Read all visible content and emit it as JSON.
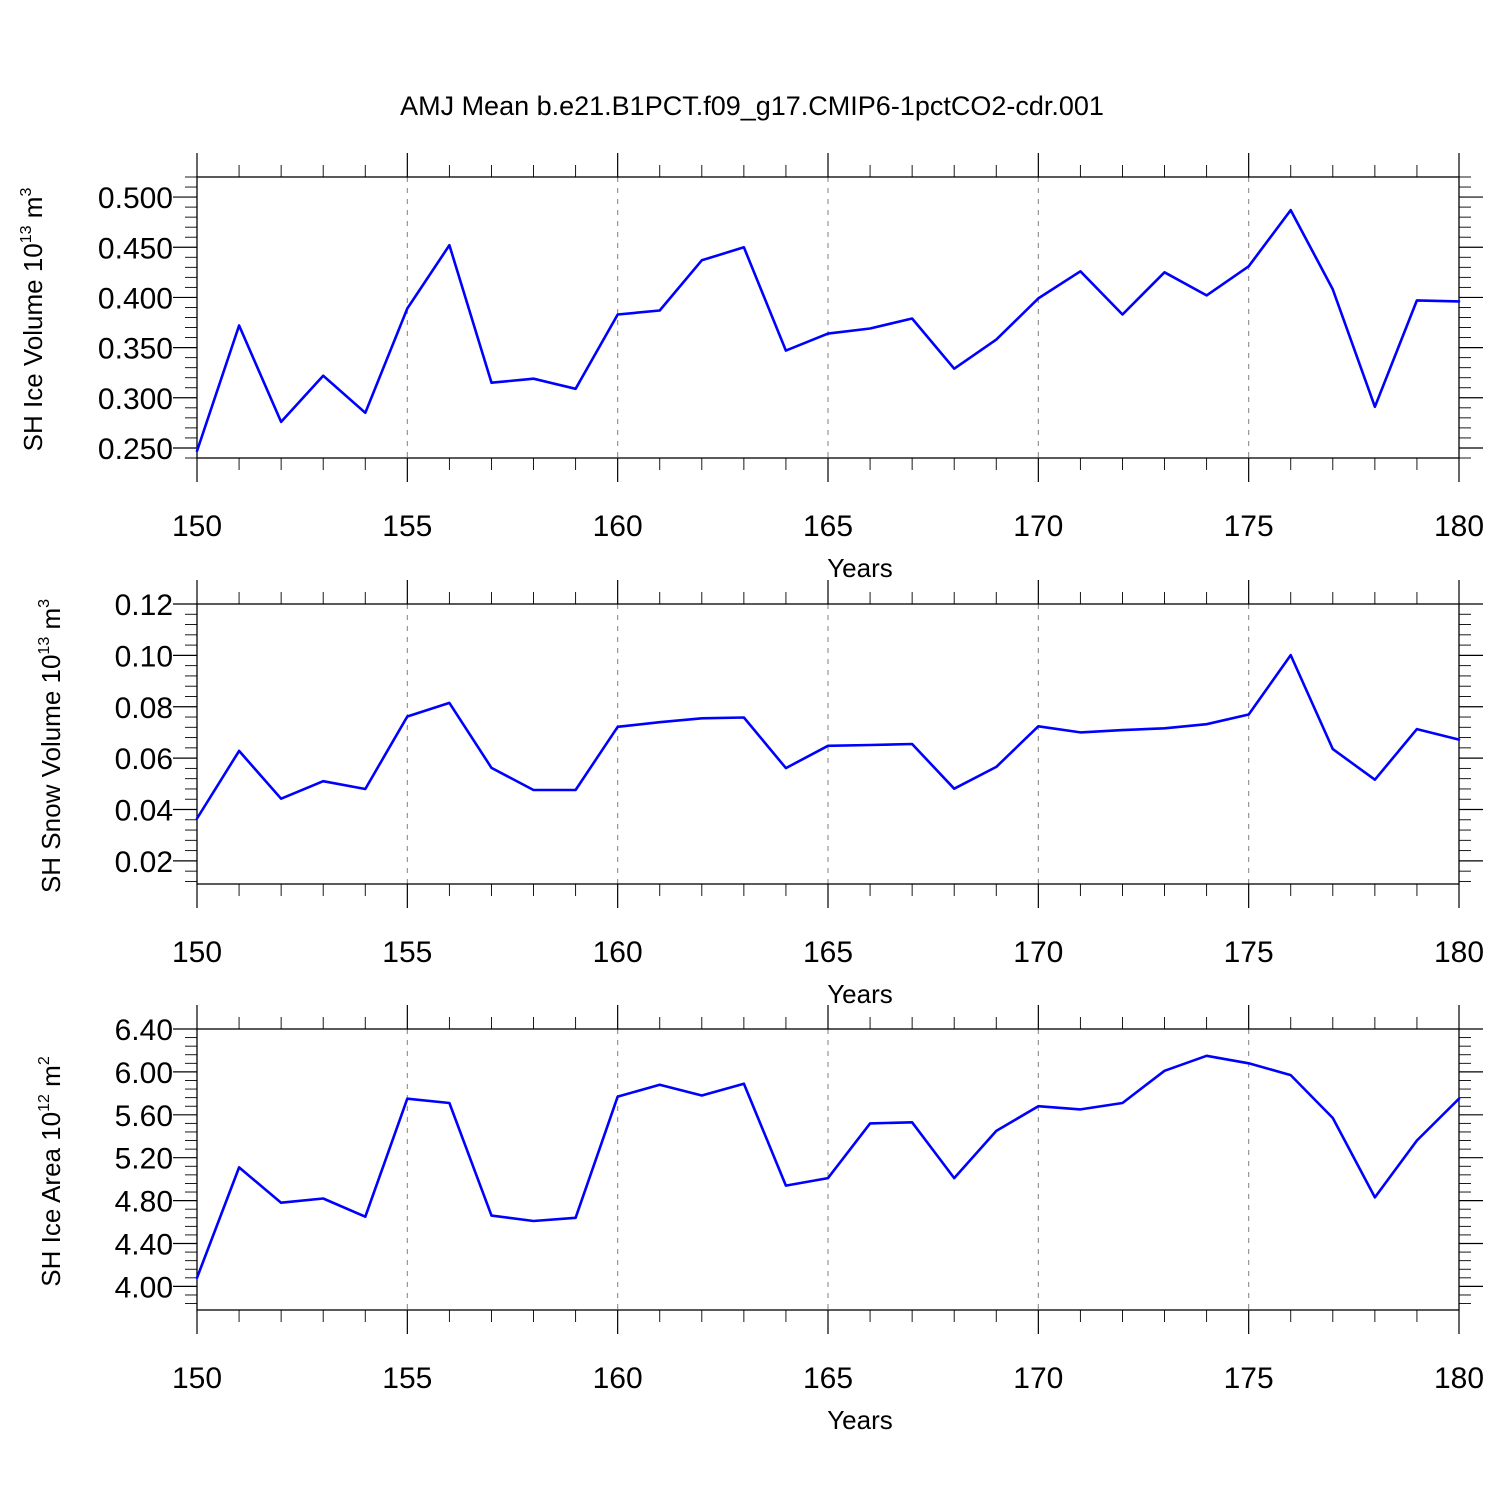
{
  "figure": {
    "title": "AMJ Mean b.e21.B1PCT.f09_g17.CMIP6-1pctCO2-cdr.001"
  },
  "chart_data": [
    {
      "type": "line",
      "xlabel": "Years",
      "ylabel": {
        "main": "SH Ice Volume 10",
        "sup1": "13",
        "mid": " m",
        "sup2": "3"
      },
      "xlim": [
        150,
        180
      ],
      "ylim": [
        0.24,
        0.52
      ],
      "xticks": [
        150,
        155,
        160,
        165,
        170,
        175,
        180
      ],
      "xtick_labels": [
        "150",
        "155",
        "160",
        "165",
        "170",
        "175",
        "180"
      ],
      "yticks": [
        0.25,
        0.3,
        0.35,
        0.4,
        0.45,
        0.5
      ],
      "ytick_labels": [
        "0.250",
        "0.300",
        "0.350",
        "0.400",
        "0.450",
        "0.500"
      ],
      "y_minor_step": 0.01,
      "grid": "vertical dashed at major x ticks",
      "color": "#0000ff",
      "x": [
        150,
        151,
        152,
        153,
        154,
        155,
        156,
        157,
        158,
        159,
        160,
        161,
        162,
        163,
        164,
        165,
        166,
        167,
        168,
        169,
        170,
        171,
        172,
        173,
        174,
        175,
        176,
        177,
        178,
        179,
        180
      ],
      "values": [
        0.247,
        0.372,
        0.276,
        0.322,
        0.285,
        0.389,
        0.452,
        0.315,
        0.319,
        0.309,
        0.383,
        0.387,
        0.437,
        0.45,
        0.347,
        0.364,
        0.369,
        0.379,
        0.329,
        0.358,
        0.399,
        0.426,
        0.383,
        0.425,
        0.402,
        0.431,
        0.487,
        0.408,
        0.291,
        0.397,
        0.396
      ]
    },
    {
      "type": "line",
      "xlabel": "Years",
      "ylabel": {
        "main": "SH Snow Volume 10",
        "sup1": "13",
        "mid": " m",
        "sup2": "3"
      },
      "xlim": [
        150,
        180
      ],
      "ylim": [
        0.011,
        0.12
      ],
      "xticks": [
        150,
        155,
        160,
        165,
        170,
        175,
        180
      ],
      "xtick_labels": [
        "150",
        "155",
        "160",
        "165",
        "170",
        "175",
        "180"
      ],
      "yticks": [
        0.02,
        0.04,
        0.06,
        0.08,
        0.1,
        0.12
      ],
      "ytick_labels": [
        "0.02",
        "0.04",
        "0.06",
        "0.08",
        "0.10",
        "0.12"
      ],
      "y_minor_step": 0.004,
      "grid": "vertical dashed at major x ticks",
      "color": "#0000ff",
      "x": [
        150,
        151,
        152,
        153,
        154,
        155,
        156,
        157,
        158,
        159,
        160,
        161,
        162,
        163,
        164,
        165,
        166,
        167,
        168,
        169,
        170,
        171,
        172,
        173,
        174,
        175,
        176,
        177,
        178,
        179,
        180
      ],
      "values": [
        0.0365,
        0.0628,
        0.0442,
        0.051,
        0.048,
        0.0762,
        0.0815,
        0.0562,
        0.0476,
        0.0476,
        0.0722,
        0.074,
        0.0755,
        0.0758,
        0.0561,
        0.0648,
        0.0651,
        0.0655,
        0.0481,
        0.0566,
        0.0724,
        0.07,
        0.0709,
        0.0716,
        0.0732,
        0.077,
        0.1001,
        0.0635,
        0.0516,
        0.0713,
        0.0672
      ]
    },
    {
      "type": "line",
      "xlabel": "Years",
      "ylabel": {
        "main": "SH Ice Area 10",
        "sup1": "12",
        "mid": " m",
        "sup2": "2"
      },
      "xlim": [
        150,
        180
      ],
      "ylim": [
        3.78,
        6.4
      ],
      "xticks": [
        150,
        155,
        160,
        165,
        170,
        175,
        180
      ],
      "xtick_labels": [
        "150",
        "155",
        "160",
        "165",
        "170",
        "175",
        "180"
      ],
      "yticks": [
        4.0,
        4.4,
        4.8,
        5.2,
        5.6,
        6.0,
        6.4
      ],
      "ytick_labels": [
        "4.00",
        "4.40",
        "4.80",
        "5.20",
        "5.60",
        "6.00",
        "6.40"
      ],
      "y_minor_step": 0.08,
      "grid": "vertical dashed at major x ticks",
      "color": "#0000ff",
      "x": [
        150,
        151,
        152,
        153,
        154,
        155,
        156,
        157,
        158,
        159,
        160,
        161,
        162,
        163,
        164,
        165,
        166,
        167,
        168,
        169,
        170,
        171,
        172,
        173,
        174,
        175,
        176,
        177,
        178,
        179,
        180
      ],
      "values": [
        4.08,
        5.11,
        4.78,
        4.82,
        4.65,
        5.75,
        5.71,
        4.66,
        4.61,
        4.64,
        5.77,
        5.88,
        5.78,
        5.89,
        4.94,
        5.01,
        5.52,
        5.53,
        5.01,
        5.45,
        5.68,
        5.65,
        5.71,
        6.01,
        6.15,
        6.08,
        5.97,
        5.57,
        4.83,
        5.36,
        5.75
      ]
    }
  ]
}
